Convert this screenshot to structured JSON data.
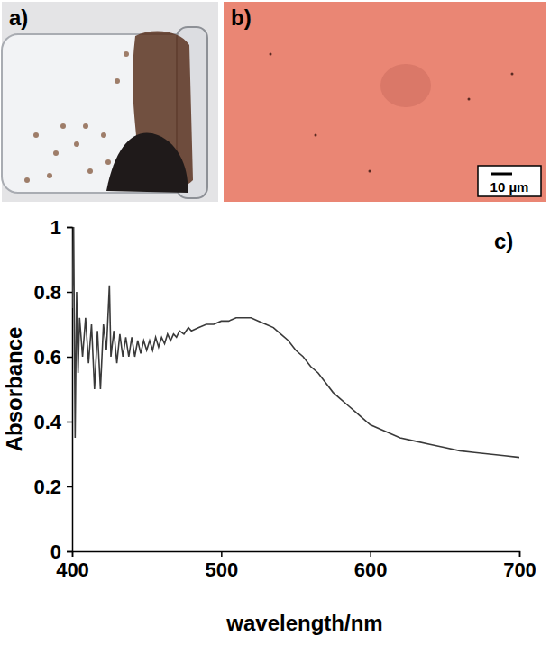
{
  "panels": {
    "a": {
      "label": "a)"
    },
    "b": {
      "label": "b)",
      "scale_bar": "10 µm"
    }
  },
  "chart_data": {
    "type": "line",
    "x_label": "wavelength/nm",
    "y_label": "Absorbance",
    "annotations": [
      {
        "text": "c)"
      }
    ],
    "color": "#3a3a3a",
    "xlim": [
      400,
      700
    ],
    "xticks": [
      400,
      500,
      600,
      700
    ],
    "ylim": [
      0,
      1
    ],
    "yticks": [
      0,
      0.2,
      0.4,
      0.6,
      0.8,
      1
    ],
    "grid": false,
    "x": [
      400,
      401,
      402,
      403,
      404,
      405,
      407,
      409,
      411,
      413,
      415,
      417,
      419,
      421,
      423,
      425,
      426,
      428,
      430,
      432,
      434,
      436,
      438,
      440,
      442,
      444,
      446,
      448,
      450,
      452,
      454,
      456,
      458,
      460,
      462,
      464,
      466,
      468,
      470,
      472,
      475,
      478,
      480,
      485,
      490,
      495,
      500,
      505,
      510,
      515,
      520,
      525,
      530,
      535,
      540,
      545,
      550,
      555,
      560,
      565,
      570,
      575,
      580,
      585,
      590,
      595,
      600,
      610,
      620,
      630,
      640,
      650,
      660,
      670,
      680,
      690,
      700
    ],
    "values": [
      0.75,
      1.0,
      0.35,
      0.8,
      0.55,
      0.72,
      0.6,
      0.72,
      0.58,
      0.7,
      0.5,
      0.68,
      0.5,
      0.7,
      0.62,
      0.82,
      0.6,
      0.68,
      0.58,
      0.67,
      0.6,
      0.66,
      0.6,
      0.66,
      0.6,
      0.65,
      0.61,
      0.65,
      0.62,
      0.65,
      0.62,
      0.66,
      0.63,
      0.66,
      0.64,
      0.67,
      0.65,
      0.67,
      0.66,
      0.68,
      0.67,
      0.69,
      0.68,
      0.69,
      0.7,
      0.7,
      0.71,
      0.71,
      0.72,
      0.72,
      0.72,
      0.71,
      0.7,
      0.69,
      0.67,
      0.65,
      0.62,
      0.6,
      0.57,
      0.55,
      0.52,
      0.49,
      0.47,
      0.45,
      0.43,
      0.41,
      0.39,
      0.37,
      0.35,
      0.34,
      0.33,
      0.32,
      0.31,
      0.305,
      0.3,
      0.295,
      0.29
    ]
  }
}
